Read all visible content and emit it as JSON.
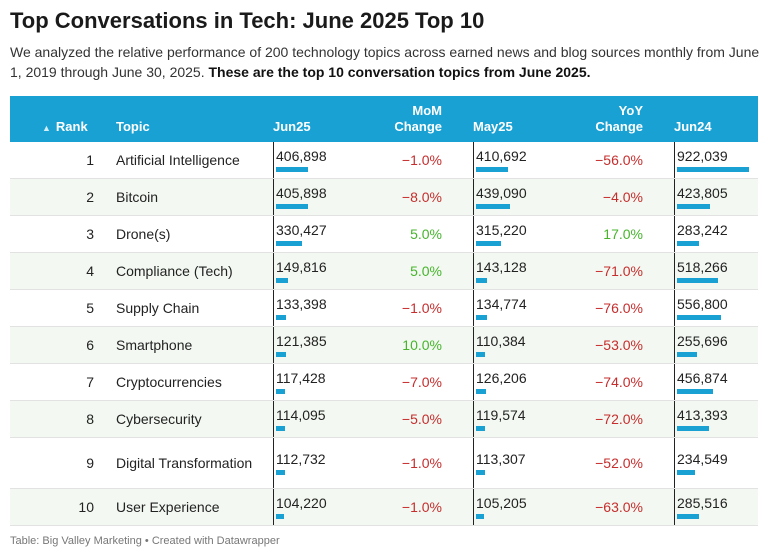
{
  "title": "Top Conversations in Tech: June 2025 Top 10",
  "description": {
    "text": "We analyzed the relative performance of 200 technology topics across earned news and blog sources monthly from June 1, 2019 through June 30, 2025. ",
    "bold": "These are the top 10 conversation topics from June 2025."
  },
  "headers": {
    "rank": "Rank",
    "topic": "Topic",
    "jun25": "Jun25",
    "mom_line1": "MoM",
    "mom_line2": "Change",
    "may25": "May25",
    "yoy_line1": "YoY",
    "yoy_line2": "Change",
    "jun24": "Jun24"
  },
  "sort_icon": "triangle-up-icon",
  "footer": "Table: Big Valley Marketing • Created with Datawrapper",
  "colors": {
    "header_bg": "#1aa1d4",
    "bar": "#1aa1d4",
    "negative": "#c62d2d",
    "positive": "#47b42c",
    "alt_row": "#f3f9f2"
  },
  "chart_data": {
    "type": "table",
    "bar_max": 922039,
    "rows": [
      {
        "rank": "1",
        "topic": "Artificial Intelligence",
        "jun25": 406898,
        "jun25_text": "406,898",
        "mom": "−1.0%",
        "mom_sign": "neg",
        "may25": 410692,
        "may25_text": "410,692",
        "yoy": "−56.0%",
        "yoy_sign": "neg",
        "jun24": 922039,
        "jun24_text": "922,039"
      },
      {
        "rank": "2",
        "topic": "Bitcoin",
        "jun25": 405898,
        "jun25_text": "405,898",
        "mom": "−8.0%",
        "mom_sign": "neg",
        "may25": 439090,
        "may25_text": "439,090",
        "yoy": "−4.0%",
        "yoy_sign": "neg",
        "jun24": 423805,
        "jun24_text": "423,805"
      },
      {
        "rank": "3",
        "topic": "Drone(s)",
        "jun25": 330427,
        "jun25_text": "330,427",
        "mom": "5.0%",
        "mom_sign": "pos",
        "may25": 315220,
        "may25_text": "315,220",
        "yoy": "17.0%",
        "yoy_sign": "pos",
        "jun24": 283242,
        "jun24_text": "283,242"
      },
      {
        "rank": "4",
        "topic": "Compliance (Tech)",
        "jun25": 149816,
        "jun25_text": "149,816",
        "mom": "5.0%",
        "mom_sign": "pos",
        "may25": 143128,
        "may25_text": "143,128",
        "yoy": "−71.0%",
        "yoy_sign": "neg",
        "jun24": 518266,
        "jun24_text": "518,266"
      },
      {
        "rank": "5",
        "topic": "Supply Chain",
        "jun25": 133398,
        "jun25_text": "133,398",
        "mom": "−1.0%",
        "mom_sign": "neg",
        "may25": 134774,
        "may25_text": "134,774",
        "yoy": "−76.0%",
        "yoy_sign": "neg",
        "jun24": 556800,
        "jun24_text": "556,800"
      },
      {
        "rank": "6",
        "topic": "Smartphone",
        "jun25": 121385,
        "jun25_text": "121,385",
        "mom": "10.0%",
        "mom_sign": "pos",
        "may25": 110384,
        "may25_text": "110,384",
        "yoy": "−53.0%",
        "yoy_sign": "neg",
        "jun24": 255696,
        "jun24_text": "255,696"
      },
      {
        "rank": "7",
        "topic": "Cryptocurrencies",
        "jun25": 117428,
        "jun25_text": "117,428",
        "mom": "−7.0%",
        "mom_sign": "neg",
        "may25": 126206,
        "may25_text": "126,206",
        "yoy": "−74.0%",
        "yoy_sign": "neg",
        "jun24": 456874,
        "jun24_text": "456,874"
      },
      {
        "rank": "8",
        "topic": "Cybersecurity",
        "jun25": 114095,
        "jun25_text": "114,095",
        "mom": "−5.0%",
        "mom_sign": "neg",
        "may25": 119574,
        "may25_text": "119,574",
        "yoy": "−72.0%",
        "yoy_sign": "neg",
        "jun24": 413393,
        "jun24_text": "413,393"
      },
      {
        "rank": "9",
        "topic": "Digital Transformation",
        "jun25": 112732,
        "jun25_text": "112,732",
        "mom": "−1.0%",
        "mom_sign": "neg",
        "may25": 113307,
        "may25_text": "113,307",
        "yoy": "−52.0%",
        "yoy_sign": "neg",
        "jun24": 234549,
        "jun24_text": "234,549"
      },
      {
        "rank": "10",
        "topic": "User Experience",
        "jun25": 104220,
        "jun25_text": "104,220",
        "mom": "−1.0%",
        "mom_sign": "neg",
        "may25": 105205,
        "may25_text": "105,205",
        "yoy": "−63.0%",
        "yoy_sign": "neg",
        "jun24": 285516,
        "jun24_text": "285,516"
      }
    ]
  }
}
